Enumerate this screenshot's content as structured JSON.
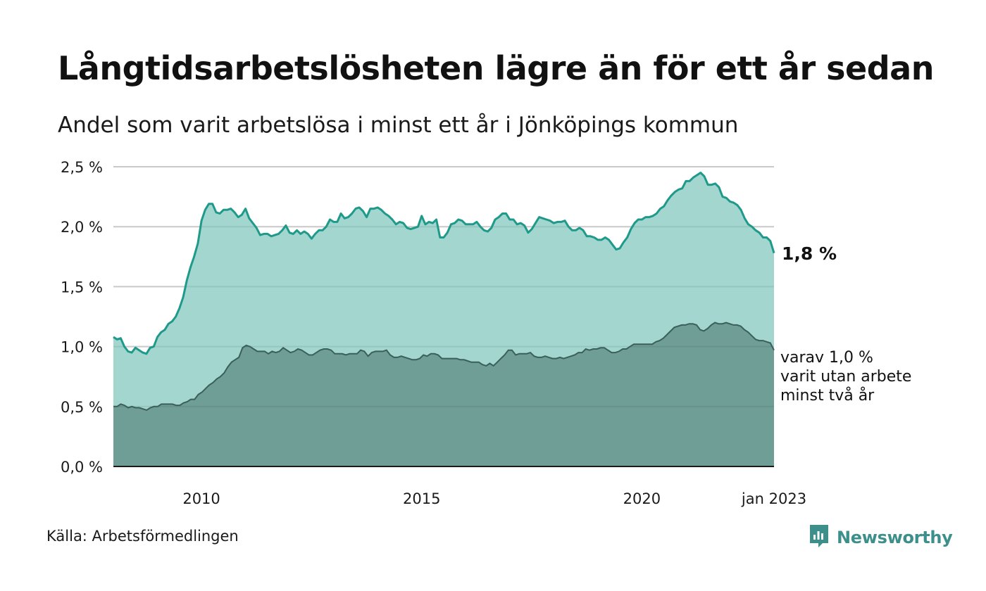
{
  "title": "Långtidsarbetslösheten lägre än för ett år sedan",
  "subtitle": "Andel som varit arbetslösa i minst ett år i Jönköpings kommun",
  "source": "Källa: Arbetsförmedlingen",
  "brand": "Newsworthy",
  "end_labels": {
    "main": "1,8 %",
    "sub_line1": "varav 1,0 %",
    "sub_line2": "varit utan arbete",
    "sub_line3": "minst två år"
  },
  "colors": {
    "main_line": "#1f9a8a",
    "main_fill": "#a2d6cf",
    "sub_line": "#3b5f5a",
    "sub_fill": "#6f9e97",
    "grid": "#d9d9d9",
    "brand": "#3c8f8b"
  },
  "chart_data": {
    "type": "area",
    "x_start": "2008-01",
    "x_end": "2023-01",
    "frequency": "monthly",
    "ylim": [
      0,
      2.5
    ],
    "yticks": [
      "0,0 %",
      "0,5 %",
      "1,0 %",
      "1,5 %",
      "2,0 %",
      "2,5 %"
    ],
    "xticks": [
      {
        "label": "2010",
        "x": "2010-01"
      },
      {
        "label": "2015",
        "x": "2015-01"
      },
      {
        "label": "2020",
        "x": "2020-01"
      },
      {
        "label": "jan 2023",
        "x": "2023-01"
      }
    ],
    "grid": true,
    "series": [
      {
        "values": [
          1.08,
          1.06,
          1.07,
          1.0,
          0.96,
          0.95,
          0.99,
          0.97,
          0.95,
          0.94,
          0.99,
          1.0,
          1.08,
          1.12,
          1.14,
          1.19,
          1.21,
          1.25,
          1.32,
          1.41,
          1.55,
          1.66,
          1.75,
          1.86,
          2.05,
          2.14,
          2.19,
          2.19,
          2.12,
          2.11,
          2.14,
          2.14,
          2.15,
          2.12,
          2.08,
          2.1,
          2.15,
          2.07,
          2.03,
          1.99,
          1.93,
          1.94,
          1.94,
          1.92,
          1.93,
          1.94,
          1.97,
          2.01,
          1.95,
          1.94,
          1.97,
          1.94,
          1.96,
          1.94,
          1.9,
          1.94,
          1.97,
          1.97,
          2.0,
          2.06,
          2.04,
          2.04,
          2.11,
          2.07,
          2.08,
          2.11,
          2.15,
          2.16,
          2.13,
          2.08,
          2.15,
          2.15,
          2.16,
          2.14,
          2.11,
          2.09,
          2.06,
          2.02,
          2.04,
          2.03,
          1.99,
          1.98,
          1.99,
          2.0,
          2.09,
          2.02,
          2.04,
          2.03,
          2.06,
          1.91,
          1.91,
          1.95,
          2.02,
          2.03,
          2.06,
          2.05,
          2.02,
          2.02,
          2.02,
          2.04,
          2.0,
          1.97,
          1.96,
          1.99,
          2.06,
          2.08,
          2.11,
          2.11,
          2.06,
          2.06,
          2.02,
          2.03,
          2.01,
          1.95,
          1.98,
          2.03,
          2.08,
          2.07,
          2.06,
          2.05,
          2.03,
          2.04,
          2.04,
          2.05,
          2.0,
          1.97,
          1.97,
          1.99,
          1.97,
          1.92,
          1.92,
          1.91,
          1.89,
          1.89,
          1.91,
          1.89,
          1.85,
          1.81,
          1.82,
          1.87,
          1.91,
          1.98,
          2.03,
          2.06,
          2.06,
          2.08,
          2.08,
          2.09,
          2.11,
          2.15,
          2.17,
          2.22,
          2.26,
          2.29,
          2.31,
          2.32,
          2.38,
          2.38,
          2.41,
          2.43,
          2.45,
          2.42,
          2.35,
          2.35,
          2.36,
          2.33,
          2.25,
          2.24,
          2.21,
          2.2,
          2.18,
          2.14,
          2.07,
          2.02,
          2.0,
          1.97,
          1.95,
          1.91,
          1.91,
          1.88,
          1.78
        ]
      },
      {
        "values": [
          0.5,
          0.5,
          0.52,
          0.51,
          0.49,
          0.5,
          0.49,
          0.49,
          0.48,
          0.47,
          0.49,
          0.5,
          0.5,
          0.52,
          0.52,
          0.52,
          0.52,
          0.51,
          0.51,
          0.53,
          0.54,
          0.56,
          0.56,
          0.6,
          0.62,
          0.65,
          0.68,
          0.7,
          0.73,
          0.75,
          0.78,
          0.83,
          0.87,
          0.89,
          0.91,
          0.99,
          1.01,
          1.0,
          0.98,
          0.96,
          0.96,
          0.96,
          0.94,
          0.96,
          0.95,
          0.96,
          0.99,
          0.97,
          0.95,
          0.96,
          0.98,
          0.97,
          0.95,
          0.93,
          0.93,
          0.95,
          0.97,
          0.98,
          0.98,
          0.97,
          0.94,
          0.94,
          0.94,
          0.93,
          0.94,
          0.94,
          0.94,
          0.97,
          0.96,
          0.92,
          0.95,
          0.96,
          0.96,
          0.96,
          0.97,
          0.93,
          0.91,
          0.91,
          0.92,
          0.91,
          0.9,
          0.89,
          0.89,
          0.9,
          0.93,
          0.92,
          0.94,
          0.94,
          0.93,
          0.9,
          0.9,
          0.9,
          0.9,
          0.9,
          0.89,
          0.89,
          0.88,
          0.87,
          0.87,
          0.87,
          0.85,
          0.84,
          0.86,
          0.84,
          0.87,
          0.9,
          0.93,
          0.97,
          0.97,
          0.93,
          0.94,
          0.94,
          0.94,
          0.95,
          0.92,
          0.91,
          0.91,
          0.92,
          0.91,
          0.9,
          0.9,
          0.91,
          0.9,
          0.91,
          0.92,
          0.93,
          0.95,
          0.95,
          0.98,
          0.97,
          0.98,
          0.98,
          0.99,
          0.99,
          0.97,
          0.95,
          0.95,
          0.96,
          0.98,
          0.98,
          1.0,
          1.02,
          1.02,
          1.02,
          1.02,
          1.02,
          1.02,
          1.04,
          1.05,
          1.07,
          1.1,
          1.13,
          1.16,
          1.17,
          1.18,
          1.18,
          1.19,
          1.19,
          1.18,
          1.14,
          1.13,
          1.15,
          1.18,
          1.2,
          1.19,
          1.19,
          1.2,
          1.19,
          1.18,
          1.18,
          1.17,
          1.14,
          1.12,
          1.09,
          1.06,
          1.05,
          1.05,
          1.04,
          1.03,
          0.97
        ]
      }
    ]
  }
}
